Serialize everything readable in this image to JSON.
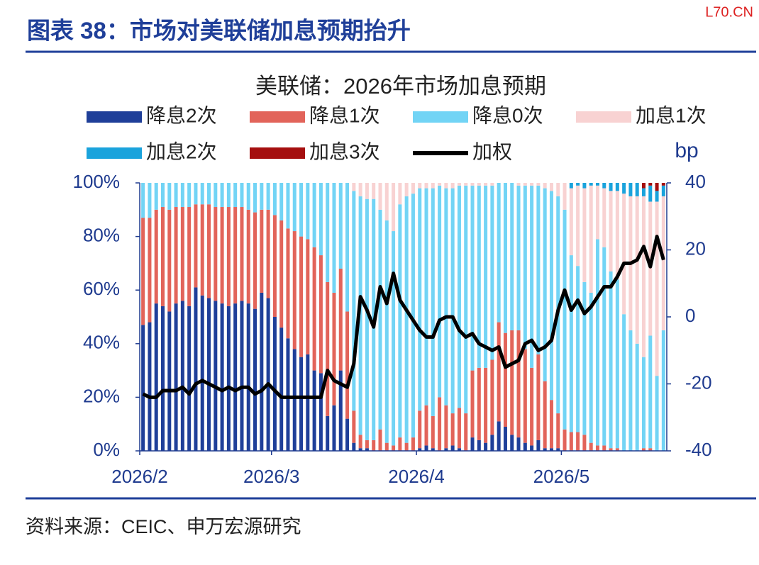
{
  "header": {
    "title": "图表 38：市场对美联储加息预期抬升",
    "watermark": "L70.CN"
  },
  "footer": {
    "source": "资料来源：CEIC、申万宏源研究"
  },
  "chart_data": {
    "type": "bar",
    "stacked": true,
    "title": "美联储：2026年市场加息预期",
    "y2label": "bp",
    "categories": [
      "2026/2",
      null,
      null,
      null,
      null,
      null,
      null,
      null,
      null,
      null,
      null,
      null,
      null,
      null,
      null,
      null,
      null,
      null,
      null,
      null,
      "2026/3",
      null,
      null,
      null,
      null,
      null,
      null,
      null,
      null,
      null,
      null,
      null,
      null,
      null,
      null,
      null,
      null,
      null,
      null,
      null,
      null,
      null,
      "2026/4",
      null,
      null,
      null,
      null,
      null,
      null,
      null,
      null,
      null,
      null,
      null,
      null,
      null,
      null,
      null,
      null,
      null,
      null,
      null,
      null,
      null,
      "2026/5",
      null,
      null,
      null,
      null,
      null,
      null,
      null,
      null,
      null,
      null,
      null,
      null,
      null,
      null,
      null
    ],
    "ylim": [
      0,
      100
    ],
    "yticks": [
      {
        "value": 0,
        "label": "0%"
      },
      {
        "value": 20,
        "label": "20%"
      },
      {
        "value": 40,
        "label": "40%"
      },
      {
        "value": 60,
        "label": "60%"
      },
      {
        "value": 80,
        "label": "80%"
      },
      {
        "value": 100,
        "label": "100%"
      }
    ],
    "y2lim": [
      -40,
      40
    ],
    "y2ticks": [
      -40,
      -20,
      0,
      20,
      40
    ],
    "series": [
      {
        "name": "降息2次",
        "color": "#1f3f99",
        "values": [
          47,
          48,
          55,
          54,
          52,
          55,
          56,
          54,
          61,
          58,
          57,
          56,
          55,
          54,
          55,
          56,
          55,
          53,
          59,
          57,
          50,
          46,
          42,
          38,
          35,
          36,
          30,
          29,
          13,
          17,
          30,
          12,
          3,
          1,
          1,
          0,
          0,
          0,
          0,
          0,
          0,
          0,
          1,
          2,
          1,
          0,
          1,
          2,
          1,
          0,
          5,
          4,
          3,
          6,
          11,
          9,
          6,
          5,
          3,
          2,
          4,
          1,
          1,
          1,
          0,
          0,
          0,
          0,
          0,
          0,
          0,
          0,
          0,
          0,
          0,
          0,
          0,
          0,
          0,
          0
        ]
      },
      {
        "name": "降息1次",
        "color": "#e2645a",
        "values": [
          40,
          39,
          35,
          37,
          38,
          36,
          35,
          37,
          31,
          34,
          35,
          35,
          36,
          37,
          36,
          35,
          35,
          36,
          31,
          33,
          38,
          40,
          41,
          44,
          45,
          43,
          46,
          44,
          50,
          42,
          38,
          40,
          12,
          5,
          3,
          4,
          8,
          3,
          2,
          5,
          3,
          5,
          14,
          15,
          12,
          20,
          16,
          12,
          15,
          14,
          25,
          27,
          28,
          28,
          37,
          35,
          39,
          40,
          35,
          29,
          32,
          25,
          18,
          13,
          8,
          7,
          7,
          6,
          3,
          2,
          2,
          1,
          1,
          0,
          0,
          0,
          1,
          1,
          0,
          0
        ]
      },
      {
        "name": "降息0次",
        "color": "#72d4f5",
        "values": [
          13,
          13,
          10,
          9,
          10,
          9,
          9,
          9,
          8,
          8,
          8,
          9,
          9,
          9,
          9,
          9,
          10,
          11,
          10,
          10,
          12,
          14,
          17,
          18,
          20,
          21,
          24,
          27,
          37,
          41,
          32,
          48,
          82,
          89,
          90,
          90,
          82,
          83,
          80,
          87,
          92,
          91,
          83,
          81,
          85,
          79,
          81,
          84,
          83,
          85,
          69,
          68,
          68,
          65,
          52,
          56,
          55,
          54,
          61,
          68,
          63,
          72,
          78,
          81,
          82,
          66,
          62,
          57,
          56,
          77,
          74,
          66,
          63,
          51,
          45,
          40,
          34,
          42,
          28,
          45
        ]
      },
      {
        "name": "加息1次",
        "color": "#f8d2d2",
        "values": [
          0,
          0,
          0,
          0,
          0,
          0,
          0,
          0,
          0,
          0,
          0,
          0,
          0,
          0,
          0,
          0,
          0,
          0,
          0,
          0,
          0,
          0,
          0,
          0,
          0,
          0,
          0,
          0,
          0,
          0,
          0,
          0,
          3,
          5,
          6,
          6,
          10,
          14,
          18,
          8,
          5,
          4,
          2,
          2,
          2,
          1,
          2,
          2,
          1,
          1,
          1,
          1,
          1,
          1,
          0,
          0,
          0,
          1,
          1,
          1,
          1,
          2,
          3,
          5,
          10,
          25,
          30,
          35,
          40,
          20,
          22,
          30,
          33,
          45,
          50,
          55,
          60,
          50,
          65,
          50
        ]
      },
      {
        "name": "加息2次",
        "color": "#1aa3dc",
        "values": [
          0,
          0,
          0,
          0,
          0,
          0,
          0,
          0,
          0,
          0,
          0,
          0,
          0,
          0,
          0,
          0,
          0,
          0,
          0,
          0,
          0,
          0,
          0,
          0,
          0,
          0,
          0,
          0,
          0,
          0,
          0,
          0,
          0,
          0,
          0,
          0,
          0,
          0,
          0,
          0,
          0,
          0,
          0,
          0,
          0,
          0,
          0,
          0,
          0,
          0,
          0,
          0,
          0,
          0,
          0,
          0,
          0,
          0,
          0,
          0,
          0,
          0,
          0,
          0,
          0,
          2,
          1,
          2,
          1,
          1,
          2,
          3,
          3,
          4,
          5,
          5,
          3,
          6,
          4,
          4
        ]
      },
      {
        "name": "加息3次",
        "color": "#a50f0f",
        "values": [
          0,
          0,
          0,
          0,
          0,
          0,
          0,
          0,
          0,
          0,
          0,
          0,
          0,
          0,
          0,
          0,
          0,
          0,
          0,
          0,
          0,
          0,
          0,
          0,
          0,
          0,
          0,
          0,
          0,
          0,
          0,
          0,
          0,
          0,
          0,
          0,
          0,
          0,
          0,
          0,
          0,
          0,
          0,
          0,
          0,
          0,
          0,
          0,
          0,
          0,
          0,
          0,
          0,
          0,
          0,
          0,
          0,
          0,
          0,
          0,
          0,
          0,
          0,
          0,
          0,
          0,
          0,
          0,
          0,
          0,
          0,
          0,
          0,
          0,
          0,
          0,
          2,
          1,
          3,
          1
        ]
      },
      {
        "name": "加权",
        "color": "#000000",
        "type": "line",
        "axis": "y2",
        "values": [
          -23,
          -24,
          -24,
          -22,
          -22,
          -22,
          -21,
          -23,
          -20,
          -19,
          -20,
          -21,
          -22,
          -21,
          -22,
          -21,
          -21,
          -23,
          -22,
          -20,
          -22,
          -24,
          -24,
          -24,
          -24,
          -24,
          -24,
          -24,
          -16,
          -19,
          -20,
          -21,
          -14,
          6,
          2,
          -3,
          9,
          4,
          13,
          5,
          2,
          -1,
          -4,
          -6,
          -6,
          -1,
          0,
          0,
          -4,
          -6,
          -5,
          -8,
          -9,
          -10,
          -9,
          -15,
          -14,
          -13,
          -8,
          -7,
          -10,
          -9,
          -7,
          2,
          8,
          2,
          5,
          1,
          3,
          6,
          9,
          9,
          12,
          16,
          16,
          17,
          21,
          15,
          24,
          17
        ]
      }
    ]
  }
}
